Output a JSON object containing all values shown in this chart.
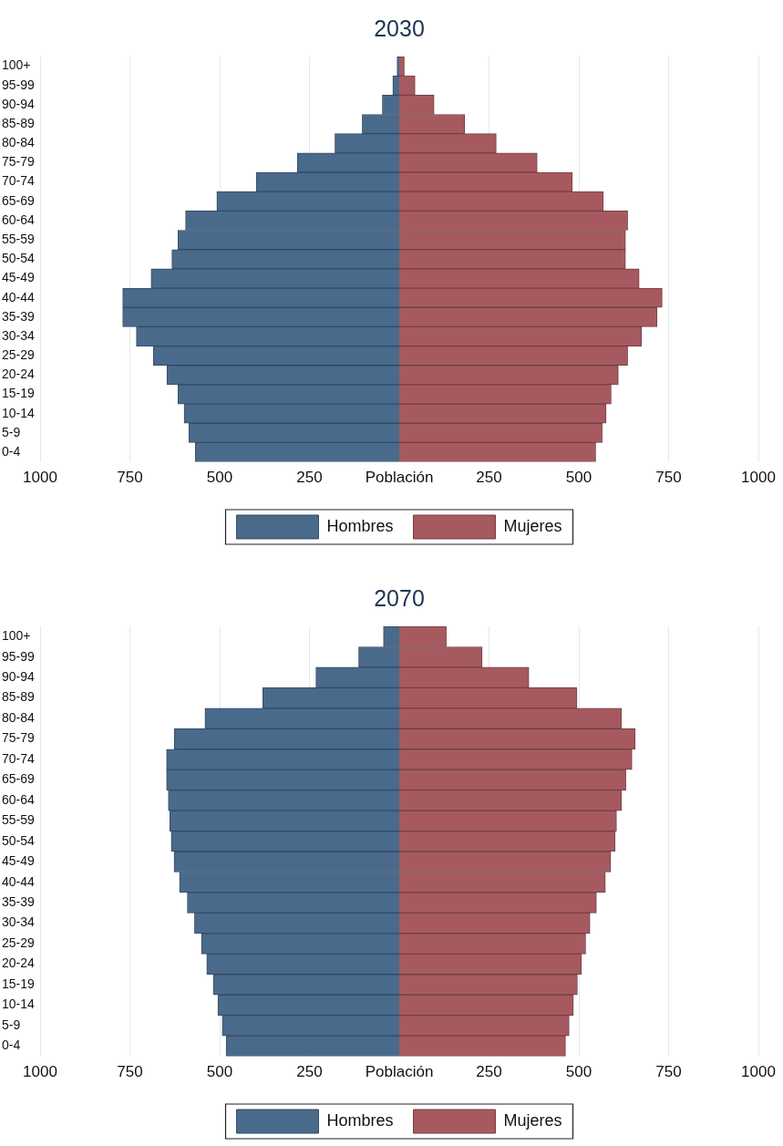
{
  "chart_data": [
    {
      "type": "bar",
      "orientation": "horizontal",
      "stacked": true,
      "title": "2030",
      "xlabel": "Población",
      "grid": "x",
      "legend": "bottom",
      "categories": [
        "100+",
        "95-99",
        "90-94",
        "85-89",
        "80-84",
        "75-79",
        "70-74",
        "65-69",
        "60-64",
        "55-59",
        "50-54",
        "45-49",
        "40-44",
        "35-39",
        "30-34",
        "25-29",
        "20-24",
        "15-19",
        "10-14",
        "5-9",
        "0-4"
      ],
      "xlim": [
        -1000,
        1000
      ],
      "xticks": [
        {
          "value": -1000,
          "label": "1000"
        },
        {
          "value": -750,
          "label": "750"
        },
        {
          "value": -500,
          "label": "500"
        },
        {
          "value": -250,
          "label": "250"
        },
        250,
        500,
        750,
        1000
      ],
      "series": [
        {
          "name": "Hombres",
          "color": "#4a6a8c",
          "values": [
            -6,
            -18,
            -47,
            -103,
            -179,
            -284,
            -398,
            -508,
            -595,
            -616,
            -633,
            -691,
            -770,
            -770,
            -732,
            -685,
            -647,
            -616,
            -599,
            -586,
            -568
          ]
        },
        {
          "name": "Mujeres",
          "color": "#a65a5f",
          "values": [
            14,
            44,
            97,
            182,
            270,
            384,
            482,
            568,
            636,
            630,
            630,
            668,
            732,
            718,
            675,
            636,
            610,
            590,
            576,
            565,
            547
          ]
        }
      ]
    },
    {
      "type": "bar",
      "orientation": "horizontal",
      "stacked": true,
      "title": "2070",
      "xlabel": "Población",
      "grid": "x",
      "legend": "bottom",
      "categories": [
        "100+",
        "95-99",
        "90-94",
        "85-89",
        "80-84",
        "75-79",
        "70-74",
        "65-69",
        "60-64",
        "55-59",
        "50-54",
        "45-49",
        "40-44",
        "35-39",
        "30-34",
        "25-29",
        "20-24",
        "15-19",
        "10-14",
        "5-9",
        "0-4"
      ],
      "xlim": [
        -1000,
        1000
      ],
      "xticks": [
        {
          "value": -1000,
          "label": "1000"
        },
        {
          "value": -750,
          "label": "750"
        },
        {
          "value": -500,
          "label": "500"
        },
        {
          "value": -250,
          "label": "250"
        },
        250,
        500,
        750,
        1000
      ],
      "series": [
        {
          "name": "Hombres",
          "color": "#4a6a8c",
          "values": [
            -44,
            -113,
            -232,
            -380,
            -541,
            -626,
            -648,
            -648,
            -643,
            -639,
            -635,
            -627,
            -612,
            -590,
            -570,
            -551,
            -536,
            -518,
            -505,
            -493,
            -482
          ]
        },
        {
          "name": "Mujeres",
          "color": "#a65a5f",
          "values": [
            131,
            231,
            361,
            495,
            619,
            657,
            648,
            631,
            619,
            605,
            601,
            589,
            574,
            549,
            531,
            519,
            507,
            496,
            485,
            473,
            463
          ]
        }
      ]
    }
  ]
}
